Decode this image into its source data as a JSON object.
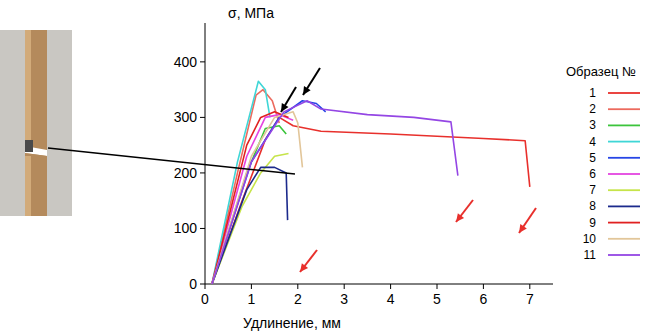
{
  "chart_data": {
    "type": "line",
    "x_label": "Удлинение, мм",
    "y_label": "σ, МПа",
    "legend_title": "Образец №",
    "xlim": [
      0,
      7.5
    ],
    "xticks": [
      0,
      1,
      2,
      3,
      4,
      5,
      6,
      7
    ],
    "ylim": [
      0,
      470
    ],
    "yticks": [
      0,
      100,
      200,
      300,
      400
    ],
    "grid": false,
    "legend": "right",
    "series": [
      {
        "name": "1",
        "color": "#e8302c",
        "x": [
          0.15,
          0.8,
          1.3,
          1.6,
          1.9,
          2.5,
          4.0,
          6.0,
          6.9,
          7.0
        ],
        "values": [
          0,
          150,
          260,
          300,
          285,
          275,
          270,
          262,
          258,
          175
        ]
      },
      {
        "name": "2",
        "color": "#ec6a5e",
        "x": [
          0.15,
          0.7,
          1.1,
          1.25,
          1.45,
          1.6
        ],
        "values": [
          0,
          200,
          340,
          350,
          330,
          290
        ]
      },
      {
        "name": "3",
        "color": "#3cc43c",
        "x": [
          0.15,
          0.9,
          1.3,
          1.6,
          1.75
        ],
        "values": [
          0,
          200,
          280,
          285,
          270
        ]
      },
      {
        "name": "4",
        "color": "#3fd6d6",
        "x": [
          0.15,
          0.7,
          1.15,
          1.3,
          1.4
        ],
        "values": [
          0,
          220,
          365,
          350,
          300
        ]
      },
      {
        "name": "5",
        "color": "#2646e6",
        "x": [
          0.15,
          1.0,
          1.6,
          2.1,
          2.4,
          2.6
        ],
        "values": [
          0,
          220,
          300,
          330,
          325,
          310
        ]
      },
      {
        "name": "6",
        "color": "#e444e0",
        "x": [
          0.15,
          0.9,
          1.3,
          1.6,
          1.9
        ],
        "values": [
          0,
          230,
          300,
          305,
          295
        ]
      },
      {
        "name": "7",
        "color": "#c6e44a",
        "x": [
          0.15,
          0.8,
          1.0,
          1.2,
          1.5,
          1.8
        ],
        "values": [
          0,
          140,
          170,
          200,
          230,
          235
        ]
      },
      {
        "name": "8",
        "color": "#1c2a8c",
        "x": [
          0.15,
          0.9,
          1.2,
          1.5,
          1.75,
          1.78
        ],
        "values": [
          0,
          170,
          210,
          210,
          200,
          115
        ]
      },
      {
        "name": "9",
        "color": "#e02020",
        "x": [
          0.15,
          0.9,
          1.2,
          1.5,
          1.8
        ],
        "values": [
          0,
          250,
          300,
          310,
          300
        ]
      },
      {
        "name": "10",
        "color": "#e2c69a",
        "x": [
          0.15,
          1.0,
          1.5,
          1.9,
          2.0,
          2.1
        ],
        "values": [
          0,
          230,
          300,
          310,
          290,
          210
        ]
      },
      {
        "name": "11",
        "color": "#9446e4",
        "x": [
          0.15,
          1.0,
          1.7,
          2.2,
          2.5,
          3.5,
          4.5,
          5.3,
          5.45
        ],
        "values": [
          0,
          220,
          310,
          330,
          315,
          305,
          300,
          292,
          195
        ]
      }
    ]
  }
}
